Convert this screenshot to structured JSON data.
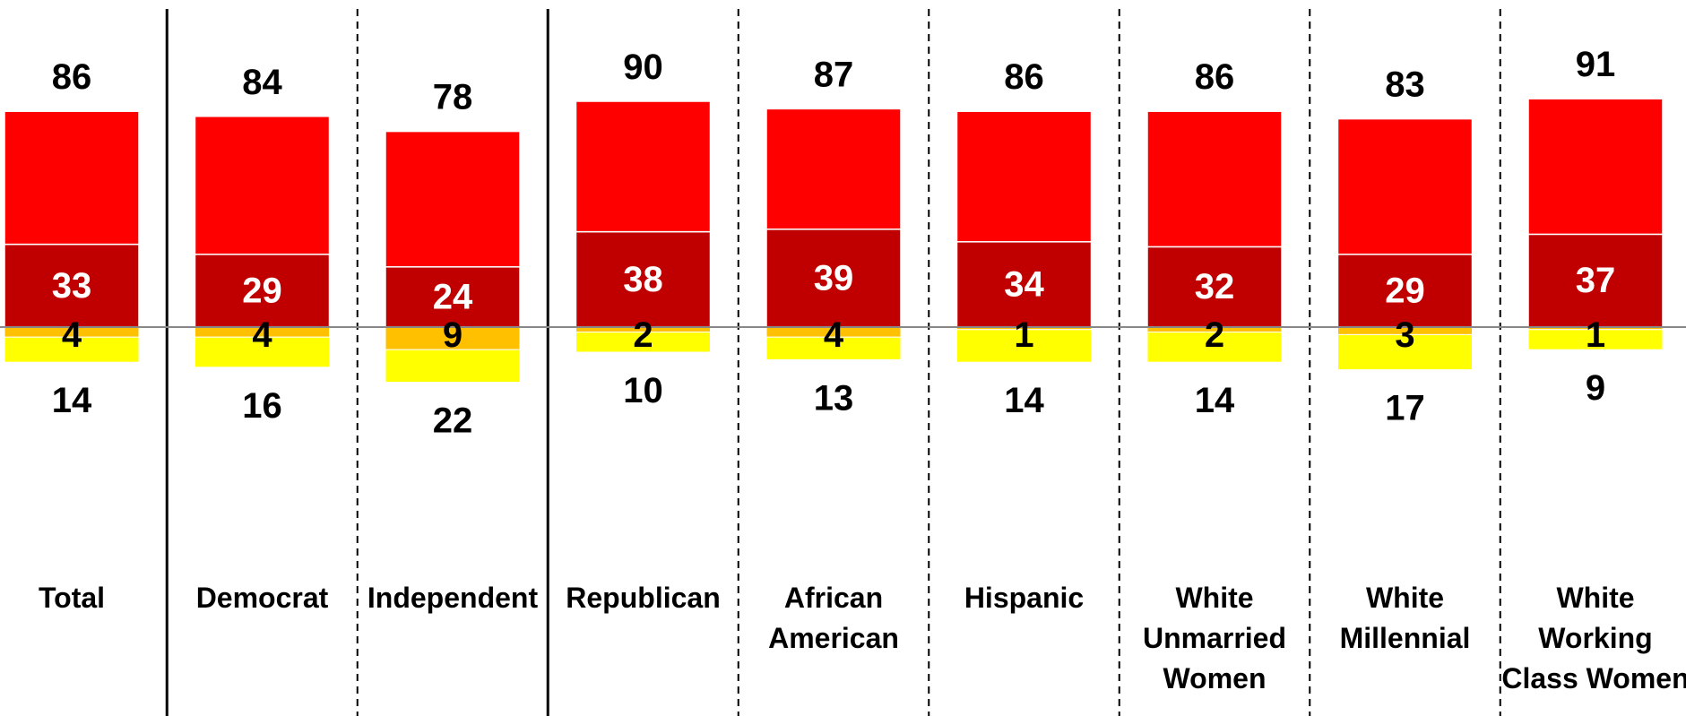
{
  "chart_data": {
    "type": "bar",
    "subtype": "diverging-stacked",
    "title": "",
    "xlabel": "",
    "ylabel": "",
    "grid": false,
    "legend": "none",
    "categories": [
      [
        "Total"
      ],
      [
        "Democrat"
      ],
      [
        "Independent"
      ],
      [
        "Republican"
      ],
      [
        "African",
        "American"
      ],
      [
        "Hispanic"
      ],
      [
        "White",
        "Unmarried",
        "Women"
      ],
      [
        "White",
        "Millennial"
      ],
      [
        "White",
        "Working",
        "Class Women"
      ]
    ],
    "positive_total": [
      86,
      84,
      78,
      90,
      87,
      86,
      86,
      83,
      91
    ],
    "series": [
      {
        "values": [
          33,
          29,
          24,
          38,
          39,
          34,
          32,
          29,
          37
        ],
        "color": "#C00000"
      },
      {
        "values": [
          53,
          55,
          54,
          52,
          48,
          52,
          54,
          54,
          54
        ],
        "color": "#FF0000"
      },
      {
        "values": [
          4,
          4,
          9,
          2,
          4,
          1,
          2,
          3,
          1
        ],
        "color": "#FFC000"
      },
      {
        "values": [
          10,
          12,
          13,
          8,
          9,
          13,
          12,
          14,
          8
        ],
        "color": "#FFFF00"
      }
    ],
    "negative_total": [
      14,
      16,
      22,
      10,
      13,
      14,
      14,
      17,
      9
    ],
    "separators": [
      "solid",
      "dashed",
      "solid",
      "dashed",
      "dashed",
      "dashed",
      "dashed",
      "dashed"
    ]
  }
}
